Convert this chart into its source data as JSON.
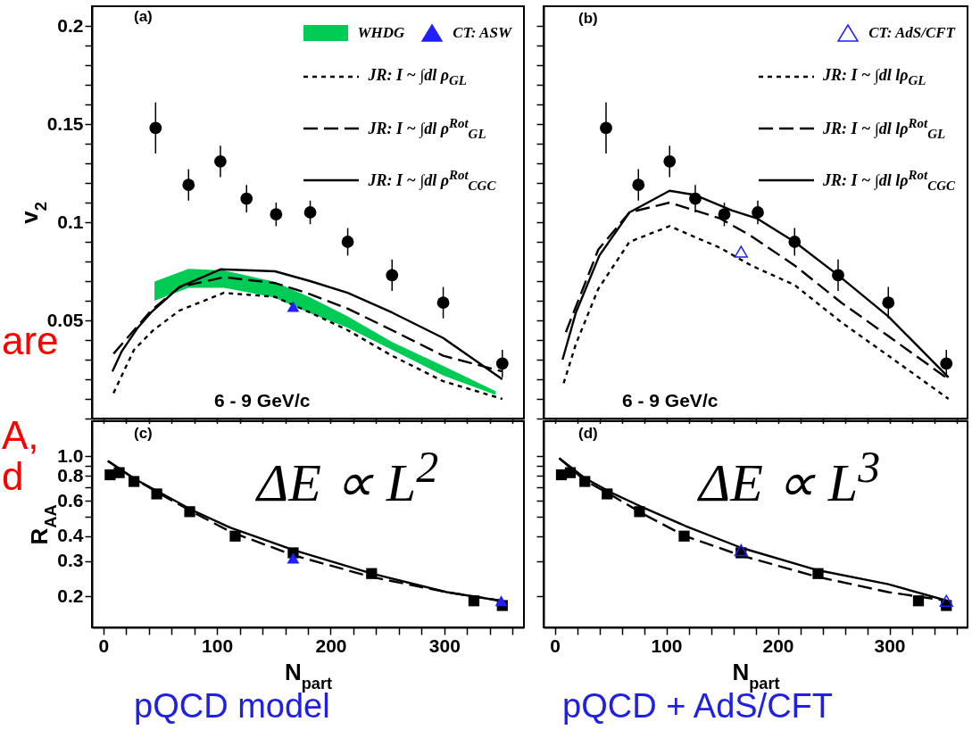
{
  "chart_data": [
    {
      "type": "line",
      "xlim": [
        -10,
        370
      ],
      "ylim": [
        0,
        0.21
      ],
      "xticks": [
        0,
        {
          "value": 20,
          "label": null
        },
        {
          "value": 40,
          "label": null
        },
        {
          "value": 60,
          "label": null
        },
        {
          "value": 80,
          "label": null
        },
        100,
        {
          "value": 120,
          "label": null
        },
        {
          "value": 140,
          "label": null
        },
        {
          "value": 160,
          "label": null
        },
        {
          "value": 180,
          "label": null
        },
        200,
        {
          "value": 220,
          "label": null
        },
        {
          "value": 240,
          "label": null
        },
        {
          "value": 260,
          "label": null
        },
        {
          "value": 280,
          "label": null
        },
        300,
        {
          "value": 320,
          "label": null
        },
        {
          "value": 340,
          "label": null
        },
        {
          "value": 360,
          "label": null
        }
      ],
      "yticks": [
        {
          "value": 0,
          "label": null
        },
        {
          "value": 0.01,
          "label": null
        },
        {
          "value": 0.02,
          "label": null
        },
        {
          "value": 0.03,
          "label": null
        },
        {
          "value": 0.04,
          "label": null
        },
        0.05,
        {
          "value": 0.06,
          "label": null
        },
        {
          "value": 0.07,
          "label": null
        },
        {
          "value": 0.08,
          "label": null
        },
        {
          "value": 0.09,
          "label": null
        },
        0.1,
        {
          "value": 0.11,
          "label": null
        },
        {
          "value": 0.12,
          "label": null
        },
        {
          "value": 0.13,
          "label": null
        },
        {
          "value": 0.14,
          "label": null
        },
        0.15,
        {
          "value": 0.16,
          "label": null
        },
        {
          "value": 0.17,
          "label": null
        },
        {
          "value": 0.18,
          "label": null
        },
        {
          "value": 0.19,
          "label": null
        },
        0.2
      ],
      "tick_labels": "y",
      "ylabel": "v$_{2}$",
      "legend": "top right",
      "annotations": [
        "(a)",
        "6 - 9 GeV/c",
        "are"
      ],
      "series": [
        {
          "name": "WHDG",
          "type": "area",
          "color": "#00cc55",
          "x": [
            45,
            75,
            106,
            150,
            182,
            215,
            254,
            299,
            345
          ],
          "values": [
            null,
            null,
            null,
            null,
            null,
            null,
            null,
            null,
            null
          ],
          "lower": [
            0.06,
            0.0666,
            0.0666,
            0.0617,
            0.0536,
            0.0463,
            0.035,
            0.0219,
            0.012
          ],
          "upper": [
            0.0698,
            0.0763,
            0.0755,
            0.0698,
            0.0617,
            0.052,
            0.039,
            0.0268,
            0.014
          ]
        },
        {
          "name": "CT: ASW",
          "type": "scatter",
          "color": "#1f1fff",
          "marker": "triangle",
          "x": [
            167
          ],
          "values": [
            0.057
          ]
        },
        {
          "name": "JR: I ~ ∫dl ρ$_{GL}$",
          "type": "line",
          "color": "#000000",
          "line_style": "dotted",
          "x": [
            9,
            27,
            44,
            67,
            106,
            151,
            182,
            215,
            254,
            299,
            351
          ],
          "values": [
            0.013,
            0.035,
            0.045,
            0.055,
            0.064,
            0.062,
            0.054,
            0.045,
            0.032,
            0.019,
            0.01
          ]
        },
        {
          "name": "JR: I ~ ∫dl ρ$^{Rot}$$_{GL}$",
          "type": "line",
          "color": "#000000",
          "line_style": "dashed",
          "x": [
            9,
            42,
            67,
            106,
            151,
            179,
            215,
            254,
            299,
            351
          ],
          "values": [
            0.033,
            0.055,
            0.067,
            0.072,
            0.069,
            0.064,
            0.056,
            0.045,
            0.032,
            0.024
          ]
        },
        {
          "name": "JR: I ~ ∫dl ρ$^{Rot}$$_{CGC}$",
          "type": "line",
          "color": "#000000",
          "line_style": "solid",
          "x": [
            8,
            16,
            30,
            42,
            67,
            103,
            151,
            182,
            215,
            254,
            299,
            351
          ],
          "values": [
            0.024,
            0.034,
            0.046,
            0.054,
            0.067,
            0.076,
            0.075,
            0.07,
            0.064,
            0.054,
            0.041,
            0.02
          ]
        },
        {
          "type": "scatter",
          "color": "#000000",
          "marker": "circle",
          "x": [
            46,
            75,
            103,
            126,
            152,
            182,
            215,
            254,
            299,
            351
          ],
          "values": [
            0.148,
            0.119,
            0.131,
            0.112,
            0.104,
            0.105,
            0.09,
            0.073,
            0.059,
            0.028
          ],
          "errors": [
            0.013,
            0.008,
            0.008,
            0.007,
            0.006,
            0.006,
            0.007,
            0.008,
            0.008,
            0.007
          ]
        }
      ]
    },
    {
      "type": "line",
      "xlim": [
        -10,
        370
      ],
      "ylim": [
        0,
        0.21
      ],
      "xticks": [
        0,
        {
          "value": 20,
          "label": null
        },
        {
          "value": 40,
          "label": null
        },
        {
          "value": 60,
          "label": null
        },
        {
          "value": 80,
          "label": null
        },
        100,
        {
          "value": 120,
          "label": null
        },
        {
          "value": 140,
          "label": null
        },
        {
          "value": 160,
          "label": null
        },
        {
          "value": 180,
          "label": null
        },
        200,
        {
          "value": 220,
          "label": null
        },
        {
          "value": 240,
          "label": null
        },
        {
          "value": 260,
          "label": null
        },
        {
          "value": 280,
          "label": null
        },
        300,
        {
          "value": 320,
          "label": null
        },
        {
          "value": 340,
          "label": null
        },
        {
          "value": 360,
          "label": null
        }
      ],
      "yticks": [
        0,
        {
          "value": 0.01,
          "label": null
        },
        {
          "value": 0.02,
          "label": null
        },
        {
          "value": 0.03,
          "label": null
        },
        {
          "value": 0.04,
          "label": null
        },
        0.05,
        {
          "value": 0.06,
          "label": null
        },
        {
          "value": 0.07,
          "label": null
        },
        {
          "value": 0.08,
          "label": null
        },
        {
          "value": 0.09,
          "label": null
        },
        0.1,
        {
          "value": 0.11,
          "label": null
        },
        {
          "value": 0.12,
          "label": null
        },
        {
          "value": 0.13,
          "label": null
        },
        {
          "value": 0.14,
          "label": null
        },
        0.15,
        {
          "value": 0.16,
          "label": null
        },
        {
          "value": 0.17,
          "label": null
        },
        {
          "value": 0.18,
          "label": null
        },
        {
          "value": 0.19,
          "label": null
        },
        0.2
      ],
      "tick_labels": false,
      "legend": "top right",
      "annotations": [
        "(b)",
        "6 - 9 GeV/c"
      ],
      "series": [
        {
          "name": "CT: AdS/CFT",
          "type": "scatter",
          "color": "#1f1fff",
          "marker": "triangle-open",
          "x": [
            167
          ],
          "values": [
            0.085
          ]
        },
        {
          "name": "JR: I ~ ∫dl lρ$_{GL}$",
          "type": "line",
          "color": "#000000",
          "line_style": "dotted",
          "x": [
            8,
            19,
            39,
            67,
            103,
            148,
            176,
            215,
            257,
            299,
            353
          ],
          "values": [
            0.018,
            0.038,
            0.066,
            0.09,
            0.098,
            0.087,
            0.078,
            0.068,
            0.049,
            0.032,
            0.01
          ]
        },
        {
          "name": "JR: I ~ ∫dl lρ$^{Rot}$$_{GL}$",
          "type": "line",
          "color": "#000000",
          "line_style": "dashed",
          "x": [
            10,
            39,
            67,
            103,
            148,
            176,
            215,
            257,
            299,
            353
          ],
          "values": [
            0.044,
            0.086,
            0.105,
            0.11,
            0.102,
            0.093,
            0.078,
            0.059,
            0.042,
            0.02
          ]
        },
        {
          "name": "JR: I ~ ∫dl lρ$^{Rot}$$_{CGC}$",
          "type": "line",
          "color": "#000000",
          "line_style": "solid",
          "x": [
            7,
            19,
            40,
            67,
            103,
            125,
            159,
            181,
            215,
            254,
            299,
            353
          ],
          "values": [
            0.03,
            0.054,
            0.083,
            0.105,
            0.116,
            0.114,
            0.106,
            0.102,
            0.09,
            0.073,
            0.052,
            0.021
          ]
        },
        {
          "type": "scatter",
          "color": "#000000",
          "marker": "circle",
          "x": [
            46,
            75,
            103,
            126,
            152,
            182,
            215,
            254,
            299,
            351
          ],
          "values": [
            0.148,
            0.119,
            0.131,
            0.112,
            0.104,
            0.105,
            0.09,
            0.073,
            0.059,
            0.028
          ],
          "errors": [
            0.013,
            0.008,
            0.008,
            0.007,
            0.006,
            0.006,
            0.007,
            0.008,
            0.008,
            0.007
          ]
        }
      ]
    },
    {
      "type": "line",
      "xlim": [
        -10,
        370
      ],
      "ylim": [
        0.14,
        1.5
      ],
      "log": "y",
      "xlabel": "N$_{part}$",
      "ylabel": "R$_{AA}$",
      "xticks": [
        0,
        {
          "value": 20,
          "label": null
        },
        {
          "value": 40,
          "label": null
        },
        {
          "value": 60,
          "label": null
        },
        {
          "value": 80,
          "label": null
        },
        100,
        {
          "value": 120,
          "label": null
        },
        {
          "value": 140,
          "label": null
        },
        {
          "value": 160,
          "label": null
        },
        {
          "value": 180,
          "label": null
        },
        200,
        {
          "value": 220,
          "label": null
        },
        {
          "value": 240,
          "label": null
        },
        {
          "value": 260,
          "label": null
        },
        {
          "value": 280,
          "label": null
        },
        300,
        {
          "value": 320,
          "label": null
        },
        {
          "value": 340,
          "label": null
        },
        {
          "value": 360,
          "label": null
        }
      ],
      "yticks": [
        0.2,
        0.3,
        0.4,
        {
          "value": 0.5,
          "label": null
        },
        0.6,
        {
          "value": 0.7,
          "label": null
        },
        0.8,
        {
          "value": 0.9,
          "label": null
        },
        {
          "value": 1,
          "label": "1.0"
        }
      ],
      "annotations": [
        "(c)",
        "ΔE ∝ L$^{2}$",
        "pQCD model",
        "A,",
        "d"
      ],
      "series": [
        {
          "type": "line",
          "color": "#000000",
          "line_style": "solid",
          "x": [
            4,
            28,
            50,
            78,
            112,
            168,
            236,
            302,
            350
          ],
          "values": [
            0.95,
            0.77,
            0.66,
            0.54,
            0.44,
            0.34,
            0.26,
            0.21,
            0.19
          ]
        },
        {
          "type": "line",
          "color": "#000000",
          "line_style": "dashed",
          "x": [
            4,
            28,
            50,
            78,
            112,
            168,
            236,
            302,
            350
          ],
          "values": [
            0.95,
            0.77,
            0.65,
            0.53,
            0.42,
            0.32,
            0.25,
            0.21,
            0.19
          ]
        },
        {
          "type": "scatter",
          "color": "#000000",
          "marker": "square",
          "x": [
            6,
            14,
            27,
            47,
            76,
            116,
            167,
            236,
            326,
            351
          ],
          "values": [
            0.81,
            0.83,
            0.75,
            0.65,
            0.53,
            0.4,
            0.33,
            0.26,
            0.19,
            0.18
          ]
        },
        {
          "type": "scatter",
          "color": "#1f1fff",
          "marker": "triangle",
          "x": [
            167,
            350
          ],
          "values": [
            0.31,
            0.19
          ]
        }
      ]
    },
    {
      "type": "line",
      "xlim": [
        -10,
        370
      ],
      "ylim": [
        0.14,
        1.5
      ],
      "log": "y",
      "xlabel": "N$_{part}$",
      "tick_labels": "x",
      "xticks": [
        0,
        {
          "value": 20,
          "label": null
        },
        {
          "value": 40,
          "label": null
        },
        {
          "value": 60,
          "label": null
        },
        {
          "value": 80,
          "label": null
        },
        100,
        {
          "value": 120,
          "label": null
        },
        {
          "value": 140,
          "label": null
        },
        {
          "value": 160,
          "label": null
        },
        {
          "value": 180,
          "label": null
        },
        200,
        {
          "value": 220,
          "label": null
        },
        {
          "value": 240,
          "label": null
        },
        {
          "value": 260,
          "label": null
        },
        {
          "value": 280,
          "label": null
        },
        300,
        {
          "value": 320,
          "label": null
        },
        {
          "value": 340,
          "label": null
        },
        {
          "value": 360,
          "label": null
        }
      ],
      "yticks": [
        0.2,
        0.3,
        0.4,
        {
          "value": 0.5,
          "label": null
        },
        0.6,
        {
          "value": 0.7,
          "label": null
        },
        0.8,
        {
          "value": 0.9,
          "label": null
        },
        1
      ],
      "annotations": [
        "(d)",
        "ΔE ∝ L$^{3}$",
        "pQCD + AdS/CFT"
      ],
      "series": [
        {
          "type": "line",
          "color": "#000000",
          "line_style": "solid",
          "x": [
            4,
            27,
            53,
            81,
            117,
            167,
            236,
            299,
            352
          ],
          "values": [
            0.98,
            0.78,
            0.65,
            0.55,
            0.45,
            0.35,
            0.27,
            0.23,
            0.19
          ]
        },
        {
          "type": "line",
          "color": "#000000",
          "line_style": "dashed",
          "x": [
            4,
            27,
            53,
            81,
            117,
            167,
            236,
            299,
            352
          ],
          "values": [
            0.98,
            0.76,
            0.63,
            0.51,
            0.4,
            0.32,
            0.25,
            0.21,
            0.19
          ]
        },
        {
          "type": "scatter",
          "color": "#000000",
          "marker": "square",
          "x": [
            6,
            14,
            27,
            47,
            76,
            116,
            167,
            236,
            326,
            351
          ],
          "values": [
            0.81,
            0.83,
            0.75,
            0.65,
            0.53,
            0.4,
            0.33,
            0.26,
            0.19,
            0.18
          ]
        },
        {
          "type": "scatter",
          "color": "#1f1fff",
          "marker": "triangle-open",
          "x": [
            167,
            351
          ],
          "values": [
            0.34,
            0.19
          ]
        }
      ]
    }
  ]
}
